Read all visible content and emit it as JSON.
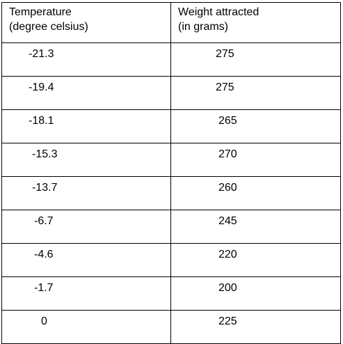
{
  "table": {
    "headers": [
      {
        "line1": "Temperature",
        "line2": "(degree celsius)"
      },
      {
        "line1": "Weight attracted",
        "line2": "(in grams)"
      }
    ],
    "rows": [
      {
        "temperature": "-21.3",
        "weight": "275"
      },
      {
        "temperature": "-19.4",
        "weight": "275"
      },
      {
        "temperature": "-18.1",
        "weight": "265"
      },
      {
        "temperature": "-15.3",
        "weight": "270"
      },
      {
        "temperature": "-13.7",
        "weight": "260"
      },
      {
        "temperature": "-6.7",
        "weight": "245"
      },
      {
        "temperature": "-4.6",
        "weight": "220"
      },
      {
        "temperature": "-1.7",
        "weight": "200"
      },
      {
        "temperature": "0",
        "weight": "225"
      }
    ]
  }
}
